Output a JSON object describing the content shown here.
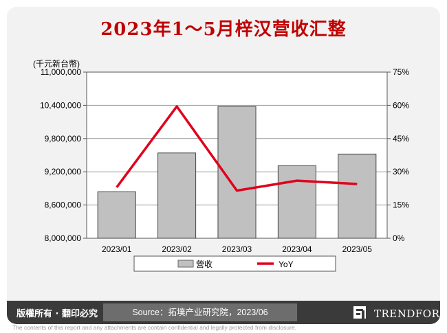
{
  "chart_data": {
    "type": "bar",
    "title": "2023年1～5月梓汉营收汇整",
    "ylabel": "(千元新台幣)",
    "categories": [
      "2023/01",
      "2023/02",
      "2023/03",
      "2023/04",
      "2023/05"
    ],
    "ylim": [
      8000000,
      11000000
    ],
    "yticks": [
      "11,000,000",
      "10,400,000",
      "9,800,000",
      "9,200,000",
      "8,600,000",
      "8,000,000"
    ],
    "y2lim": [
      0,
      75
    ],
    "y2ticks": [
      "75%",
      "60%",
      "45%",
      "30%",
      "15%",
      "0%"
    ],
    "series": [
      {
        "name": "營收",
        "kind": "bar",
        "axis": "left",
        "color": "#c0c0c0",
        "values": [
          8840000,
          9540000,
          10380000,
          9310000,
          9520000
        ]
      },
      {
        "name": "YoY",
        "kind": "line",
        "axis": "right",
        "color": "#e0001b",
        "values": [
          23,
          59.5,
          21.5,
          26,
          24.5
        ]
      }
    ],
    "legend_position": "bottom"
  },
  "footer": {
    "copyright": "版權所有 · 翻印必究",
    "source": "Source：拓墣产业研究院，2023/06",
    "brand": "TRENDFORCE",
    "disclaimer": "The contents of this report and any attachments are contain confidential and legally protected from disclosure."
  }
}
